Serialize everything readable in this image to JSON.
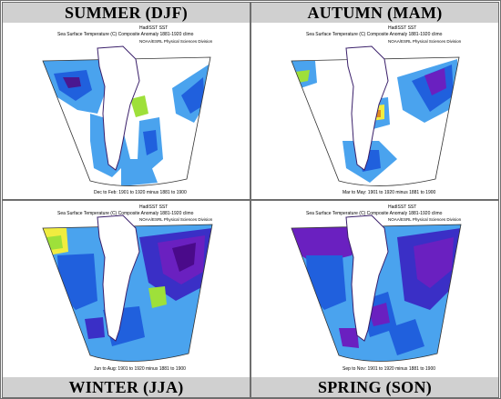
{
  "panels": [
    {
      "id": "summer",
      "season": "SUMMER (DJF)",
      "dataset": "HadISST SST",
      "title": "Sea Surface Temperature (C) Composite Anomaly 1881-1920 climo",
      "credit": "NOAA/ESRL Physical Sciences Division",
      "period": "Dec to Feb: 1901 to 1920 minus 1881 to 1900"
    },
    {
      "id": "autumn",
      "season": "AUTUMN (MAM)",
      "dataset": "HadISST SST",
      "title": "Sea Surface Temperature (C) Composite Anomaly 1881-1920 climo",
      "credit": "NOAA/ESRL Physical Sciences Division",
      "period": "Mar to May: 1901 to 1920 minus 1881 to 1900"
    },
    {
      "id": "winter",
      "season": "WINTER (JJA)",
      "dataset": "HadISST SST",
      "title": "Sea Surface Temperature (C) Composite Anomaly 1881-1920 climo",
      "credit": "NOAA/ESRL Physical Sciences Division",
      "period": "Jun to Aug: 1901 to 1920 minus 1881 to 1900"
    },
    {
      "id": "spring",
      "season": "SPRING (SON)",
      "dataset": "HadISST SST",
      "title": "Sea Surface Temperature (C) Composite Anomaly 1881-1920 climo",
      "credit": "NOAA/ESRL Physical Sciences Division",
      "period": "Sep to Nov: 1901 to 1920 minus 1881 to 1900"
    }
  ],
  "colors": {
    "light_blue": "#4aa3ee",
    "blue": "#2060dd",
    "dark_blue": "#3a2fc6",
    "purple": "#6a20c0",
    "dark_purple": "#4a0a8a",
    "green": "#9ee03a",
    "yellow": "#f0ec40",
    "orange": "#e08a20",
    "coast": "#3a1f6a",
    "header_bg": "#d0d0d0"
  }
}
